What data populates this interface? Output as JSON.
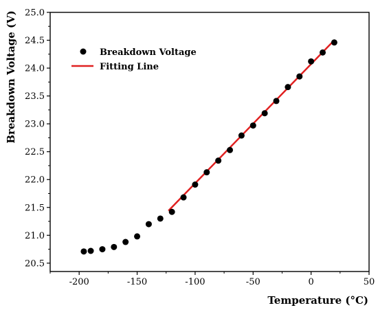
{
  "chart_data": {
    "type": "scatter",
    "title": "",
    "xlabel": "Temperature (°C)",
    "ylabel": "Breakdown Voltage (V)",
    "xlim": [
      -225,
      50
    ],
    "ylim": [
      20.35,
      25.0
    ],
    "xticks": [
      -200,
      -150,
      -100,
      -50,
      0,
      50
    ],
    "xtick_labels": [
      "-200",
      "-150",
      "-100",
      "-50",
      "0",
      "50"
    ],
    "yticks": [
      20.5,
      21.0,
      21.5,
      22.0,
      22.5,
      23.0,
      23.5,
      24.0,
      24.5,
      25.0
    ],
    "ytick_labels": [
      "20.5",
      "21.0",
      "21.5",
      "22.0",
      "22.5",
      "23.0",
      "23.5",
      "24.0",
      "24.5",
      "25.0"
    ],
    "grid": false,
    "legend_position": "top-left",
    "series": [
      {
        "name": "Breakdown Voltage",
        "kind": "scatter",
        "color": "#000000",
        "x": [
          -196,
          -190,
          -180,
          -170,
          -160,
          -150,
          -140,
          -130,
          -120,
          -110,
          -100,
          -90,
          -80,
          -70,
          -60,
          -50,
          -40,
          -30,
          -20,
          -10,
          0,
          10,
          20
        ],
        "y": [
          20.71,
          20.72,
          20.75,
          20.79,
          20.88,
          20.98,
          21.2,
          21.3,
          21.42,
          21.68,
          21.91,
          22.13,
          22.34,
          22.53,
          22.79,
          22.97,
          23.19,
          23.41,
          23.66,
          23.85,
          24.12,
          24.28,
          24.46
        ]
      },
      {
        "name": "Fitting Line",
        "kind": "line",
        "color": "#e02020",
        "x": [
          -123,
          20
        ],
        "y": [
          21.44,
          24.5
        ]
      }
    ]
  }
}
